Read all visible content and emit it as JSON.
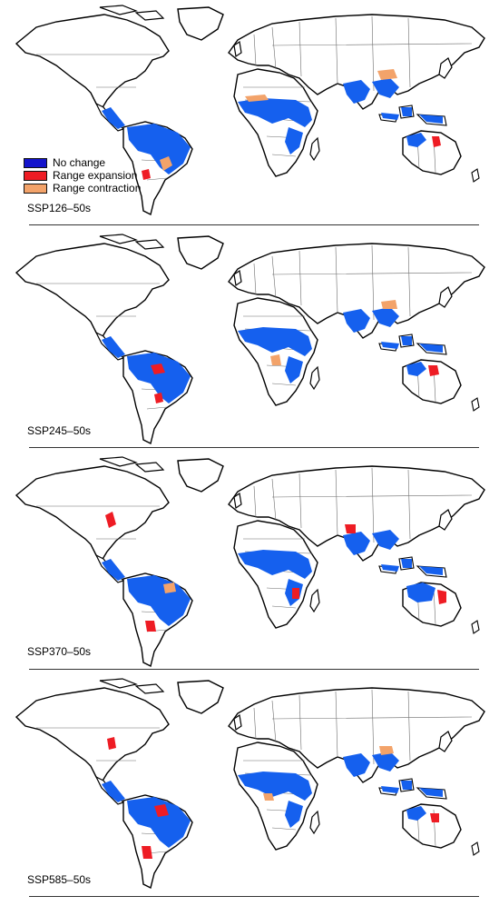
{
  "colors": {
    "no_change": "#1560ee",
    "range_expansion": "#ee1c24",
    "range_contraction": "#f3a36a",
    "land_fill": "#ffffff",
    "land_stroke": "#000000",
    "border": "#6b6b6b"
  },
  "legend": {
    "items": [
      {
        "label": "No change",
        "swatch": "#1414cc"
      },
      {
        "label": "Range expansion",
        "swatch": "#ee1c24"
      },
      {
        "label": "Range contraction",
        "swatch": "#f3a36a"
      }
    ]
  },
  "panels": [
    {
      "label": "SSP126–50s",
      "scenario_index": 0
    },
    {
      "label": "SSP245–50s",
      "scenario_index": 1
    },
    {
      "label": "SSP370–50s",
      "scenario_index": 2
    },
    {
      "label": "SSP585–50s",
      "scenario_index": 3
    }
  ]
}
